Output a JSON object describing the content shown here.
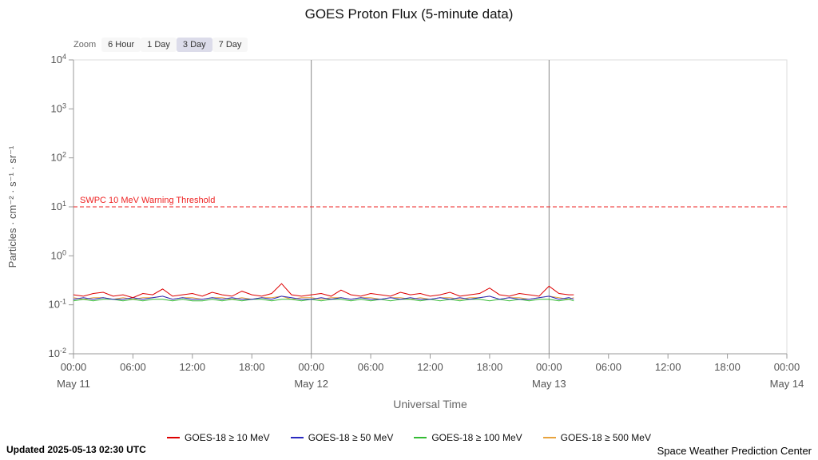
{
  "zoom": {
    "label": "Zoom",
    "options": [
      "6 Hour",
      "1 Day",
      "3 Day",
      "7 Day"
    ],
    "selected": "3 Day"
  },
  "chart_data": {
    "type": "line",
    "title": "GOES Proton Flux (5-minute data)",
    "xlabel": "Universal Time",
    "ylabel": "Particles · cm⁻² · s⁻¹ · sr⁻¹",
    "x_unit": "hours since May 11 00:00 UTC",
    "x_range_hours": [
      0,
      72
    ],
    "ylim": [
      0.01,
      10000
    ],
    "y_log_exponent_range": [
      -2,
      4
    ],
    "y_tick_exponents": [
      4,
      3,
      2,
      1,
      0,
      -1,
      -2
    ],
    "x_ticks": [
      {
        "hour": 0,
        "time": "00:00",
        "day": "May 11"
      },
      {
        "hour": 6,
        "time": "06:00"
      },
      {
        "hour": 12,
        "time": "12:00"
      },
      {
        "hour": 18,
        "time": "18:00"
      },
      {
        "hour": 24,
        "time": "00:00",
        "day": "May 12"
      },
      {
        "hour": 30,
        "time": "06:00"
      },
      {
        "hour": 36,
        "time": "12:00"
      },
      {
        "hour": 42,
        "time": "18:00"
      },
      {
        "hour": 48,
        "time": "00:00",
        "day": "May 13"
      },
      {
        "hour": 54,
        "time": "06:00"
      },
      {
        "hour": 60,
        "time": "12:00"
      },
      {
        "hour": 66,
        "time": "18:00"
      },
      {
        "hour": 72,
        "time": "00:00",
        "day": "May 14"
      }
    ],
    "day_boundaries_hours": [
      24,
      48
    ],
    "threshold": {
      "value": 10,
      "label": "SWPC 10 MeV Warning Threshold",
      "color": "#ee2222"
    },
    "grid": false,
    "legend_position": "bottom",
    "x_hours": [
      0,
      1,
      2,
      3,
      4,
      5,
      6,
      7,
      8,
      9,
      10,
      11,
      12,
      13,
      14,
      15,
      16,
      17,
      18,
      19,
      20,
      21,
      22,
      23,
      24,
      25,
      26,
      27,
      28,
      29,
      30,
      31,
      32,
      33,
      34,
      35,
      36,
      37,
      38,
      39,
      40,
      41,
      42,
      43,
      44,
      45,
      46,
      47,
      48,
      49,
      50,
      50.5
    ],
    "series": [
      {
        "name": "GOES-18 ≥ 10 MeV",
        "color": "#dd0000",
        "values": [
          0.16,
          0.15,
          0.17,
          0.18,
          0.15,
          0.16,
          0.14,
          0.17,
          0.16,
          0.21,
          0.15,
          0.16,
          0.17,
          0.15,
          0.18,
          0.16,
          0.15,
          0.19,
          0.16,
          0.15,
          0.17,
          0.27,
          0.16,
          0.15,
          0.16,
          0.17,
          0.15,
          0.2,
          0.16,
          0.15,
          0.17,
          0.16,
          0.15,
          0.18,
          0.16,
          0.17,
          0.15,
          0.16,
          0.18,
          0.15,
          0.16,
          0.17,
          0.22,
          0.16,
          0.15,
          0.17,
          0.16,
          0.15,
          0.24,
          0.17,
          0.16,
          0.16
        ]
      },
      {
        "name": "GOES-18 ≥ 50 MeV",
        "color": "#2929c0",
        "values": [
          0.13,
          0.14,
          0.13,
          0.14,
          0.13,
          0.13,
          0.14,
          0.13,
          0.14,
          0.15,
          0.13,
          0.14,
          0.13,
          0.13,
          0.14,
          0.13,
          0.14,
          0.13,
          0.13,
          0.14,
          0.13,
          0.15,
          0.14,
          0.13,
          0.13,
          0.14,
          0.13,
          0.14,
          0.13,
          0.14,
          0.13,
          0.13,
          0.14,
          0.13,
          0.14,
          0.13,
          0.13,
          0.14,
          0.13,
          0.14,
          0.13,
          0.14,
          0.15,
          0.13,
          0.14,
          0.13,
          0.13,
          0.14,
          0.15,
          0.13,
          0.14,
          0.13
        ]
      },
      {
        "name": "GOES-18 ≥ 100 MeV",
        "color": "#33bb33",
        "values": [
          0.12,
          0.13,
          0.12,
          0.13,
          0.13,
          0.12,
          0.13,
          0.12,
          0.13,
          0.13,
          0.12,
          0.13,
          0.12,
          0.12,
          0.13,
          0.12,
          0.13,
          0.12,
          0.13,
          0.13,
          0.12,
          0.13,
          0.13,
          0.12,
          0.13,
          0.12,
          0.13,
          0.13,
          0.12,
          0.13,
          0.12,
          0.13,
          0.12,
          0.13,
          0.13,
          0.12,
          0.13,
          0.12,
          0.13,
          0.12,
          0.13,
          0.13,
          0.12,
          0.13,
          0.12,
          0.13,
          0.12,
          0.13,
          0.13,
          0.12,
          0.13,
          0.12
        ]
      },
      {
        "name": "GOES-18 ≥ 500 MeV",
        "color": "#e8a33d",
        "values": [
          0.14,
          0.13,
          0.14,
          0.14,
          0.13,
          0.14,
          0.13,
          0.14,
          0.14,
          0.15,
          0.13,
          0.14,
          0.14,
          0.13,
          0.14,
          0.14,
          0.13,
          0.14,
          0.13,
          0.14,
          0.14,
          0.15,
          0.13,
          0.14,
          0.14,
          0.13,
          0.14,
          0.14,
          0.13,
          0.14,
          0.14,
          0.13,
          0.14,
          0.14,
          0.13,
          0.14,
          0.13,
          0.14,
          0.14,
          0.13,
          0.14,
          0.14,
          0.15,
          0.13,
          0.14,
          0.14,
          0.13,
          0.14,
          0.15,
          0.14,
          0.13,
          0.14
        ]
      }
    ]
  },
  "footer": {
    "updated": "Updated 2025-05-13 02:30 UTC",
    "credit": "Space Weather Prediction Center"
  }
}
